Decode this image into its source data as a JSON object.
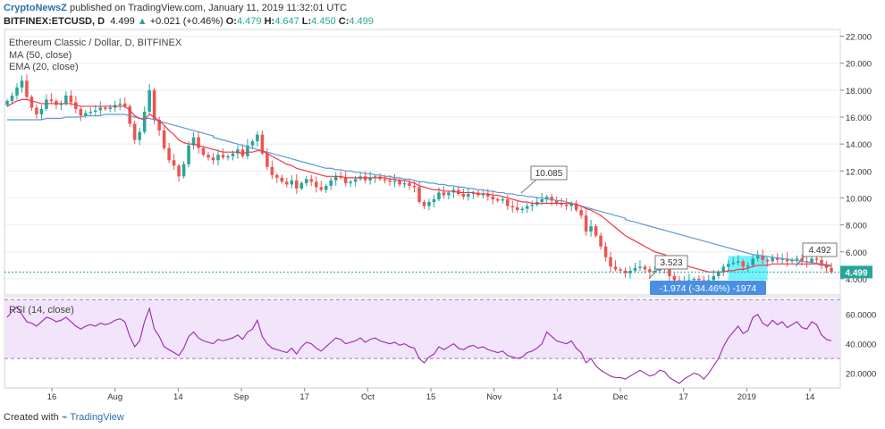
{
  "header": {
    "publisher": "CryptoNewsZ",
    "published_text": "published on TradingView.com, January 11, 2019 11:32:01 UTC",
    "symbol": "BITFINEX:ETCUSD, D",
    "last": "4.499",
    "change": "+0.021 (+0.46%)",
    "o_label": "O:",
    "o": "4.479",
    "h_label": "H:",
    "h": "4.647",
    "l_label": "L:",
    "l": "4.450",
    "c_label": "C:",
    "c": "4.499"
  },
  "legend": {
    "title": "Ethereum Classic / Dollar, D, BITFINEX",
    "ma": "MA (50, close)",
    "ema": "EMA (20, close)",
    "rsi": "RSI (14, close)"
  },
  "annotations": {
    "peak_label": "10.085",
    "low_label": "3.523",
    "last_label": "4.492",
    "current_price": "4.499",
    "measure": "-1.974 (-34.46%) -1974"
  },
  "footer": {
    "created_with": "Created with",
    "brand": "TradingView"
  },
  "colors": {
    "up": "#26a69a",
    "down": "#ef5350",
    "ma": "#5b9bd5",
    "ema": "#f23645",
    "rsi": "#9c27b0",
    "rsi_band": "#f1e4fb",
    "price_line": "#26a69a",
    "measure": "#4a90e2"
  },
  "chart_data": {
    "type": "candlestick",
    "title": "Ethereum Classic / Dollar, D, BITFINEX",
    "y_ticks": [
      "22.000",
      "20.000",
      "18.000",
      "16.000",
      "14.000",
      "12.000",
      "10.000",
      "8.000",
      "6.000",
      "4.000"
    ],
    "ylim": [
      2.8,
      22.5
    ],
    "x_ticks": [
      "16",
      "Aug",
      "14",
      "Sep",
      "17",
      "Oct",
      "15",
      "Nov",
      "14",
      "Dec",
      "17",
      "2019",
      "14"
    ],
    "closes": [
      17.2,
      17.6,
      18.2,
      18.7,
      17.5,
      16.7,
      16.2,
      16.6,
      17.3,
      17.2,
      16.9,
      17.0,
      17.6,
      17.1,
      16.6,
      16.1,
      16.3,
      16.4,
      16.5,
      16.7,
      16.6,
      16.7,
      16.9,
      17.0,
      16.8,
      15.5,
      14.3,
      14.9,
      16.4,
      18.0,
      15.8,
      15.0,
      13.7,
      12.8,
      12.4,
      11.6,
      12.5,
      13.9,
      14.5,
      13.7,
      13.2,
      13.0,
      12.8,
      13.2,
      13.0,
      13.1,
      13.3,
      13.6,
      13.1,
      13.9,
      14.2,
      14.7,
      13.3,
      12.3,
      11.7,
      11.5,
      11.2,
      11.0,
      11.3,
      10.7,
      11.1,
      11.4,
      11.2,
      10.8,
      10.6,
      10.9,
      11.3,
      11.6,
      11.5,
      11.1,
      11.2,
      11.4,
      11.6,
      11.3,
      11.5,
      11.6,
      11.4,
      11.3,
      11.2,
      11.3,
      11.0,
      11.1,
      10.9,
      10.8,
      9.7,
      9.4,
      9.7,
      9.9,
      10.4,
      10.2,
      10.4,
      10.6,
      10.3,
      10.1,
      10.3,
      10.4,
      10.2,
      10.3,
      10.1,
      9.9,
      9.8,
      9.9,
      9.4,
      9.3,
      9.1,
      9.2,
      9.4,
      9.5,
      9.7,
      9.9,
      10.085,
      9.8,
      9.6,
      9.5,
      9.4,
      9.6,
      9.1,
      8.7,
      7.5,
      7.9,
      7.2,
      6.4,
      5.6,
      4.9,
      4.7,
      4.6,
      4.4,
      4.6,
      4.8,
      4.9,
      4.7,
      4.5,
      4.6,
      4.8,
      4.7,
      4.2,
      3.9,
      3.6,
      3.8,
      3.9,
      4.0,
      3.9,
      3.7,
      3.9,
      4.2,
      4.5,
      4.9,
      5.1,
      5.2,
      5.3,
      4.9,
      5.0,
      5.5,
      5.7,
      5.4,
      5.3,
      5.6,
      5.4,
      5.5,
      5.3,
      5.4,
      5.5,
      5.3,
      5.2,
      5.5,
      5.4,
      5.0,
      4.8,
      4.499
    ],
    "ma50": [
      15.8,
      15.8,
      15.8,
      15.8,
      15.8,
      15.8,
      15.8,
      15.8,
      15.9,
      15.9,
      15.9,
      15.9,
      16.0,
      16.0,
      16.0,
      16.0,
      16.1,
      16.1,
      16.1,
      16.1,
      16.2,
      16.2,
      16.2,
      16.2,
      16.2,
      16.1,
      16.0,
      15.9,
      15.9,
      15.9,
      15.8,
      15.7,
      15.6,
      15.5,
      15.4,
      15.3,
      15.2,
      15.1,
      15.0,
      14.9,
      14.8,
      14.7,
      14.6,
      14.5,
      14.4,
      14.3,
      14.2,
      14.1,
      14.0,
      13.9,
      13.8,
      13.7,
      13.6,
      13.5,
      13.4,
      13.3,
      13.2,
      13.1,
      13.0,
      12.9,
      12.8,
      12.7,
      12.6,
      12.5,
      12.4,
      12.3,
      12.2,
      12.2,
      12.1,
      12.1,
      12.0,
      12.0,
      11.9,
      11.9,
      11.8,
      11.8,
      11.7,
      11.7,
      11.6,
      11.6,
      11.5,
      11.5,
      11.4,
      11.4,
      11.3,
      11.2,
      11.2,
      11.1,
      11.1,
      11.0,
      11.0,
      10.9,
      10.9,
      10.8,
      10.8,
      10.7,
      10.7,
      10.6,
      10.6,
      10.5,
      10.5,
      10.4,
      10.4,
      10.3,
      10.3,
      10.2,
      10.2,
      10.1,
      10.1,
      10.0,
      10.0,
      9.9,
      9.9,
      9.8,
      9.8,
      9.7,
      9.6,
      9.5,
      9.4,
      9.3,
      9.2,
      9.1,
      9.0,
      8.9,
      8.8,
      8.7,
      8.6,
      8.5,
      8.4,
      8.3,
      8.2,
      8.1,
      8.0,
      7.9,
      7.8,
      7.7,
      7.6,
      7.5,
      7.4,
      7.3,
      7.2,
      7.1,
      7.0,
      6.9,
      6.8,
      6.7,
      6.6,
      6.5,
      6.4,
      6.3,
      6.2,
      6.1,
      6.0,
      5.9,
      5.8,
      5.75,
      5.7,
      5.65,
      5.6,
      5.55,
      5.5,
      5.45,
      5.4,
      5.35,
      5.3,
      5.25,
      5.2,
      5.15,
      5.1,
      5.05,
      5.0
    ],
    "ema20": [
      16.8,
      17.0,
      17.2,
      17.3,
      17.3,
      17.2,
      17.1,
      17.0,
      17.0,
      17.0,
      17.0,
      17.0,
      17.0,
      17.0,
      16.9,
      16.8,
      16.8,
      16.8,
      16.8,
      16.8,
      16.8,
      16.8,
      16.8,
      16.8,
      16.8,
      16.5,
      16.1,
      15.9,
      15.8,
      16.2,
      16.0,
      15.7,
      15.4,
      15.0,
      14.7,
      14.3,
      14.1,
      14.0,
      14.0,
      13.9,
      13.8,
      13.7,
      13.6,
      13.5,
      13.4,
      13.4,
      13.4,
      13.4,
      13.3,
      13.4,
      13.4,
      13.5,
      13.5,
      13.3,
      13.1,
      12.9,
      12.7,
      12.5,
      12.4,
      12.2,
      12.1,
      12.0,
      11.9,
      11.8,
      11.7,
      11.6,
      11.6,
      11.6,
      11.6,
      11.5,
      11.5,
      11.5,
      11.5,
      11.5,
      11.5,
      11.5,
      11.5,
      11.5,
      11.4,
      11.4,
      11.3,
      11.3,
      11.2,
      11.1,
      10.9,
      10.8,
      10.7,
      10.6,
      10.6,
      10.5,
      10.5,
      10.5,
      10.4,
      10.4,
      10.4,
      10.4,
      10.3,
      10.3,
      10.3,
      10.2,
      10.2,
      10.1,
      10.0,
      9.9,
      9.8,
      9.7,
      9.7,
      9.6,
      9.6,
      9.6,
      9.6,
      9.6,
      9.6,
      9.6,
      9.6,
      9.6,
      9.5,
      9.4,
      9.2,
      9.1,
      8.9,
      8.7,
      8.4,
      8.1,
      7.8,
      7.5,
      7.2,
      7.0,
      6.8,
      6.6,
      6.4,
      6.2,
      6.0,
      5.9,
      5.8,
      5.6,
      5.4,
      5.2,
      5.0,
      4.9,
      4.8,
      4.7,
      4.6,
      4.5,
      4.5,
      4.5,
      4.5,
      4.6,
      4.6,
      4.7,
      4.7,
      4.8,
      4.9,
      5.0,
      5.0,
      5.0,
      5.1,
      5.1,
      5.1,
      5.1,
      5.1,
      5.1,
      5.1,
      5.1,
      5.1,
      5.1,
      5.0,
      5.0,
      4.9
    ],
    "rsi_ticks": [
      "60.0000",
      "40.0000",
      "20.0000"
    ],
    "rsi_ylim": [
      10,
      72
    ],
    "rsi_band": [
      30,
      70
    ],
    "rsi": [
      58,
      62,
      65,
      60,
      55,
      54,
      52,
      55,
      58,
      57,
      55,
      56,
      58,
      55,
      52,
      50,
      52,
      53,
      52,
      54,
      53,
      54,
      56,
      57,
      55,
      45,
      38,
      42,
      55,
      64,
      50,
      45,
      38,
      36,
      34,
      32,
      37,
      45,
      48,
      44,
      42,
      41,
      40,
      43,
      42,
      43,
      44,
      46,
      43,
      48,
      50,
      56,
      45,
      40,
      37,
      36,
      35,
      34,
      37,
      33,
      38,
      41,
      40,
      37,
      35,
      38,
      41,
      44,
      43,
      40,
      41,
      42,
      44,
      41,
      43,
      44,
      42,
      41,
      40,
      41,
      39,
      40,
      38,
      37,
      30,
      27,
      31,
      33,
      38,
      36,
      38,
      40,
      37,
      36,
      38,
      39,
      37,
      38,
      36,
      35,
      34,
      35,
      32,
      31,
      30,
      31,
      34,
      35,
      37,
      40,
      48,
      45,
      42,
      41,
      40,
      42,
      37,
      34,
      27,
      30,
      25,
      22,
      20,
      18,
      17,
      17,
      16,
      18,
      20,
      22,
      20,
      18,
      19,
      22,
      21,
      17,
      15,
      13,
      16,
      18,
      20,
      19,
      16,
      20,
      25,
      30,
      38,
      44,
      48,
      52,
      47,
      49,
      58,
      60,
      54,
      52,
      56,
      53,
      55,
      51,
      53,
      55,
      51,
      50,
      55,
      53,
      46,
      43,
      42
    ]
  }
}
